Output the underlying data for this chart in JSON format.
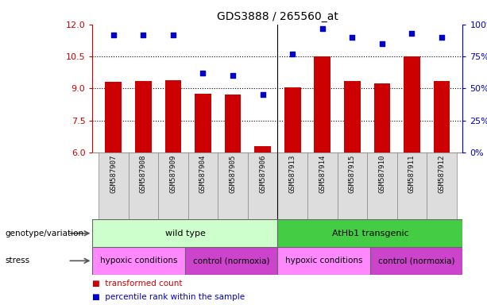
{
  "title": "GDS3888 / 265560_at",
  "samples": [
    "GSM587907",
    "GSM587908",
    "GSM587909",
    "GSM587904",
    "GSM587905",
    "GSM587906",
    "GSM587913",
    "GSM587914",
    "GSM587915",
    "GSM587910",
    "GSM587911",
    "GSM587912"
  ],
  "red_values": [
    9.3,
    9.35,
    9.4,
    8.75,
    8.7,
    6.3,
    9.05,
    10.5,
    9.35,
    9.25,
    10.5,
    9.35
  ],
  "blue_values": [
    92,
    92,
    92,
    62,
    60,
    45,
    77,
    97,
    90,
    85,
    93,
    90
  ],
  "ylim_left": [
    6,
    12
  ],
  "ylim_right": [
    0,
    100
  ],
  "yticks_left": [
    6,
    7.5,
    9,
    10.5,
    12
  ],
  "yticks_right": [
    0,
    25,
    50,
    75,
    100
  ],
  "ytick_labels_right": [
    "0%",
    "25%",
    "50%",
    "75%",
    "100%"
  ],
  "bar_color": "#cc0000",
  "dot_color": "#0000cc",
  "bg_color": "#ffffff",
  "plot_bg": "#ffffff",
  "genotype_groups": [
    {
      "label": "wild type",
      "start": 0,
      "end": 6,
      "color": "#ccffcc"
    },
    {
      "label": "AtHb1 transgenic",
      "start": 6,
      "end": 12,
      "color": "#44cc44"
    }
  ],
  "stress_groups": [
    {
      "label": "hypoxic conditions",
      "start": 0,
      "end": 3,
      "color": "#ff88ff"
    },
    {
      "label": "control (normoxia)",
      "start": 3,
      "end": 6,
      "color": "#cc44cc"
    },
    {
      "label": "hypoxic conditions",
      "start": 6,
      "end": 9,
      "color": "#ff88ff"
    },
    {
      "label": "control (normoxia)",
      "start": 9,
      "end": 12,
      "color": "#cc44cc"
    }
  ],
  "left_axis_color": "#cc0000",
  "right_axis_color": "#0000cc",
  "legend_red": "transformed count",
  "legend_blue": "percentile rank within the sample",
  "label_genotype": "genotype/variation",
  "label_stress": "stress"
}
